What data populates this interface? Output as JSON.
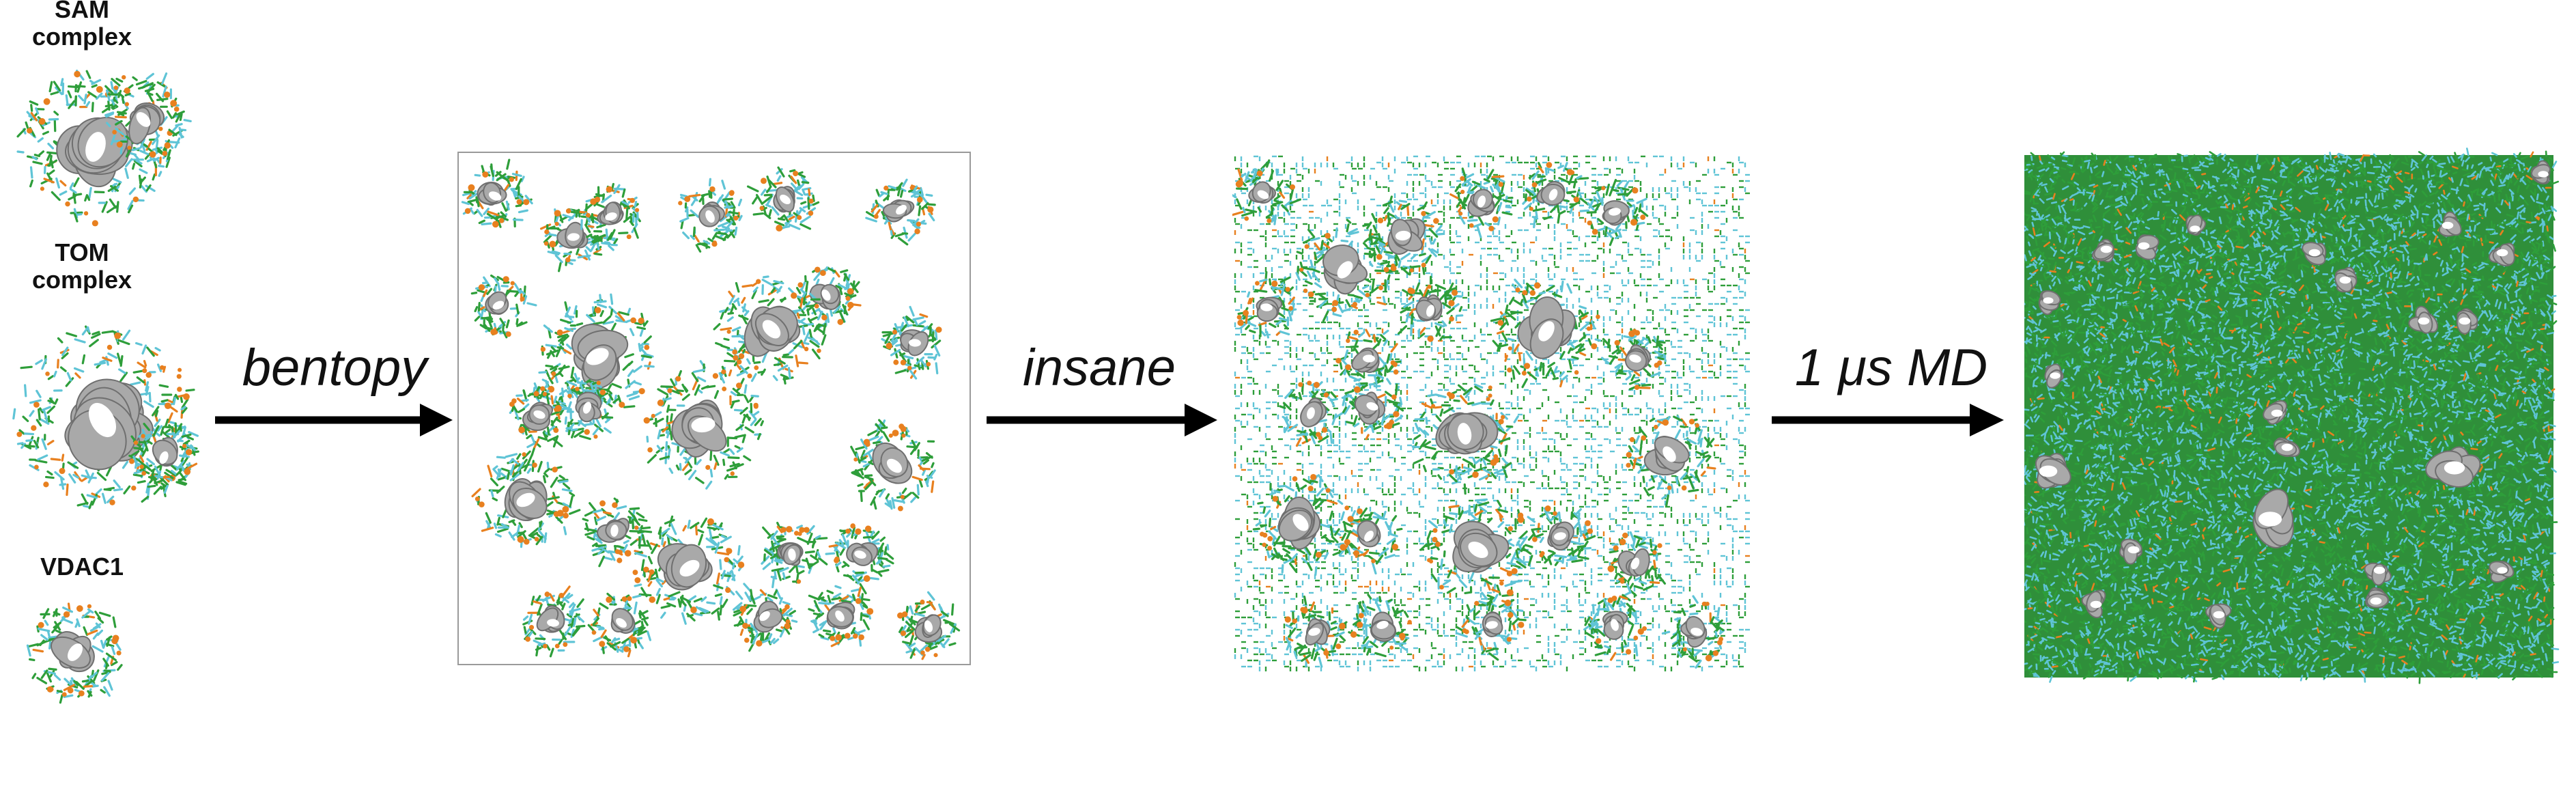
{
  "labels": {
    "sam": "SAM\ncomplex",
    "tom": "TOM\ncomplex",
    "vdac": "VDAC1"
  },
  "steps": [
    {
      "label": "bentopy"
    },
    {
      "label": "insane"
    },
    {
      "label": "1 μs MD"
    }
  ],
  "colors": {
    "protein": "#a9a9a9",
    "protein_dark": "#6f6f6f",
    "lipid_green": "#2e9e3a",
    "lipid_cyan": "#5fc4d6",
    "lipid_orange": "#e8801f",
    "arrow": "#000000",
    "panel_border": "#9a9a9a"
  },
  "panels": [
    {
      "name": "bentopy-packing",
      "background": "white"
    },
    {
      "name": "insane-membrane",
      "background": "lattice"
    },
    {
      "name": "md-equilibrated",
      "background": "dense"
    }
  ]
}
